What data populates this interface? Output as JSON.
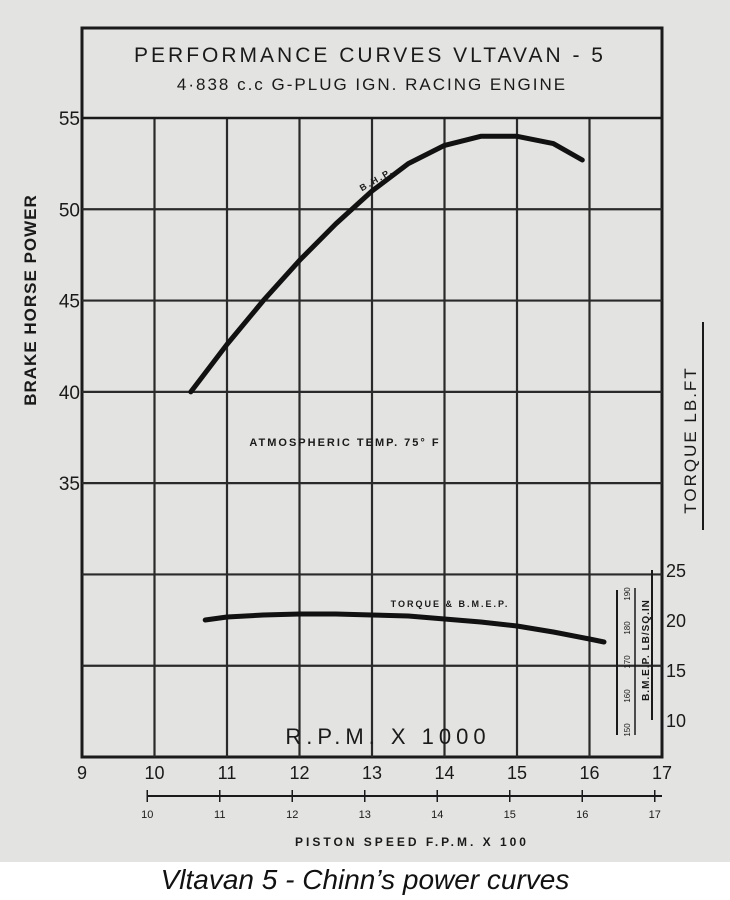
{
  "caption": "Vltavan 5 - Chinn’s power curves",
  "chart_data": {
    "type": "line",
    "title": "PERFORMANCE CURVES VLTAVAN - 5",
    "subtitle": "4·838 c.c G-PLUG IGN. RACING ENGINE",
    "xlabel": "R.P.M. X 1000",
    "x2label": "PISTON SPEED F.P.M. X 100",
    "ylabel": "BRAKE HORSE POWER",
    "y2label": "TORQUE LB.FT",
    "y3label": "B.M.E.P. LB/SQ.IN",
    "annotation": "ATMOSPHERIC TEMP. 75° F",
    "xlim": [
      9,
      17
    ],
    "x_ticks": [
      "9",
      "10",
      "11",
      "12",
      "13",
      "14",
      "15",
      "16",
      "17"
    ],
    "x2_ticks": [
      "10",
      "11",
      "12",
      "13",
      "14",
      "15",
      "16",
      "17"
    ],
    "ylim": [
      20,
      55
    ],
    "y_ticks": [
      "35",
      "40",
      "45",
      "50",
      "55"
    ],
    "y2_ticks": [
      "10",
      "15",
      "20",
      "25"
    ],
    "y3_ticks": [
      "150",
      "160",
      "170",
      "180",
      "190"
    ],
    "grid": true,
    "series": [
      {
        "name": "B.H.P.",
        "x": [
          10.5,
          11,
          11.5,
          12,
          12.5,
          13,
          13.5,
          14,
          14.5,
          15,
          15.5,
          15.9
        ],
        "y": [
          40,
          42.6,
          45,
          47.2,
          49.2,
          51,
          52.5,
          53.5,
          54,
          54,
          53.6,
          52.7
        ]
      },
      {
        "name": "TORQUE & B.M.E.P.",
        "x": [
          10.7,
          11,
          11.5,
          12,
          12.5,
          13,
          13.5,
          14,
          14.5,
          15,
          15.5,
          16,
          16.2
        ],
        "y": [
          20,
          20.3,
          20.5,
          20.6,
          20.6,
          20.5,
          20.4,
          20.1,
          19.8,
          19.4,
          18.8,
          18.1,
          17.8
        ]
      }
    ]
  }
}
